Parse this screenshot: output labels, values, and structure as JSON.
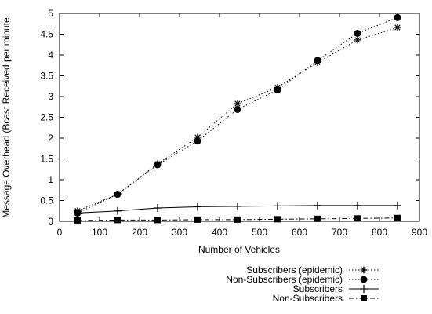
{
  "chart_data": {
    "type": "line",
    "xlabel": "Number of Vehicles",
    "ylabel": "Message Overhead (Bcast Received per minute",
    "xlim": [
      0,
      900
    ],
    "ylim": [
      0,
      5
    ],
    "x_ticks": [
      "0",
      "100",
      "200",
      "300",
      "400",
      "500",
      "600",
      "700",
      "800",
      "900"
    ],
    "y_ticks": [
      "0",
      "0.5",
      "1",
      "1.5",
      "2",
      "2.5",
      "3",
      "3.5",
      "4",
      "4.5",
      "5"
    ],
    "grid": false,
    "legend_position": "bottom-right, below plot",
    "x": [
      45,
      145,
      245,
      345,
      445,
      545,
      645,
      745,
      845
    ],
    "series": [
      {
        "name": "Subscribers (epidemic)",
        "marker": "asterisk",
        "line": "dotted",
        "values": [
          0.25,
          0.65,
          1.38,
          2.02,
          2.83,
          3.22,
          3.82,
          4.36,
          4.66
        ]
      },
      {
        "name": "Non-Subscribers (epidemic)",
        "marker": "circle",
        "line": "dotted",
        "values": [
          0.2,
          0.65,
          1.36,
          1.93,
          2.69,
          3.16,
          3.87,
          4.52,
          4.9
        ]
      },
      {
        "name": "Subscribers",
        "marker": "plus",
        "line": "solid",
        "values": [
          0.2,
          0.25,
          0.32,
          0.35,
          0.36,
          0.37,
          0.38,
          0.38,
          0.38
        ]
      },
      {
        "name": "Non-Subscribers",
        "marker": "square",
        "line": "dashdot",
        "values": [
          0.02,
          0.03,
          0.03,
          0.04,
          0.04,
          0.05,
          0.06,
          0.07,
          0.08
        ]
      }
    ]
  }
}
